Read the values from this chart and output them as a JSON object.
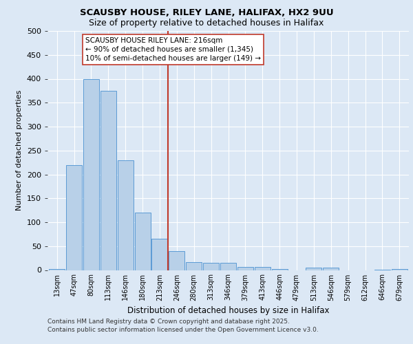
{
  "title1": "SCAUSBY HOUSE, RILEY LANE, HALIFAX, HX2 9UU",
  "title2": "Size of property relative to detached houses in Halifax",
  "xlabel": "Distribution of detached houses by size in Halifax",
  "ylabel": "Number of detached properties",
  "categories": [
    "13sqm",
    "47sqm",
    "80sqm",
    "113sqm",
    "146sqm",
    "180sqm",
    "213sqm",
    "246sqm",
    "280sqm",
    "313sqm",
    "346sqm",
    "379sqm",
    "413sqm",
    "446sqm",
    "479sqm",
    "513sqm",
    "546sqm",
    "579sqm",
    "612sqm",
    "646sqm",
    "679sqm"
  ],
  "values": [
    2,
    220,
    400,
    375,
    230,
    120,
    66,
    40,
    17,
    15,
    15,
    6,
    6,
    2,
    0,
    5,
    5,
    0,
    0,
    1,
    2
  ],
  "bar_color": "#b8d0e8",
  "bar_edge_color": "#5b9bd5",
  "vline_x_index": 6,
  "annotation_text": "SCAUSBY HOUSE RILEY LANE: 216sqm\n← 90% of detached houses are smaller (1,345)\n10% of semi-detached houses are larger (149) →",
  "ylim": [
    0,
    500
  ],
  "yticks": [
    0,
    50,
    100,
    150,
    200,
    250,
    300,
    350,
    400,
    450,
    500
  ],
  "footer1": "Contains HM Land Registry data © Crown copyright and database right 2025.",
  "footer2": "Contains public sector information licensed under the Open Government Licence v3.0.",
  "bg_color": "#dce8f5",
  "plot_bg_color": "#dce8f5",
  "vline_color": "#c0392b",
  "annotation_box_facecolor": "#ffffff",
  "annotation_box_edgecolor": "#c0392b",
  "grid_color": "#ffffff",
  "title1_fontsize": 9.5,
  "title2_fontsize": 9.0,
  "ylabel_fontsize": 8.0,
  "xlabel_fontsize": 8.5,
  "ytick_fontsize": 8.0,
  "xtick_fontsize": 7.0,
  "footer_fontsize": 6.5,
  "annot_fontsize": 7.5
}
